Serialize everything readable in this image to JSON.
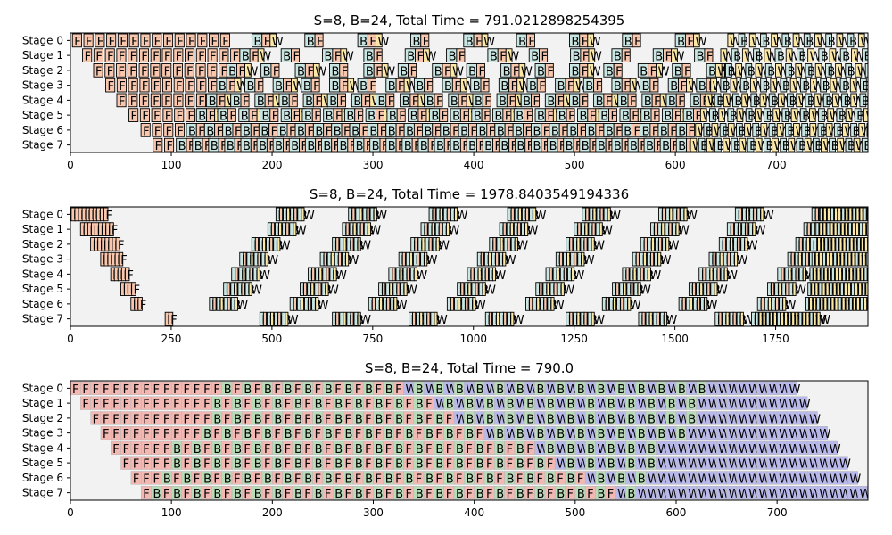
{
  "chart_data": [
    {
      "type": "gantt",
      "title": "S=8, B=24, Total Time = 791.0212898254395",
      "stages": [
        "Stage 0",
        "Stage 1",
        "Stage 2",
        "Stage 3",
        "Stage 4",
        "Stage 5",
        "Stage 6",
        "Stage 7"
      ],
      "xlim": [
        0,
        791
      ],
      "xticks": [
        "0",
        "100",
        "200",
        "300",
        "400",
        "500",
        "600",
        "700"
      ],
      "style": "outlined",
      "labels": {
        "F": "F",
        "B": "B",
        "W": "W"
      },
      "colors": {
        "F": "#f9c7ad",
        "B": "#c9e6e3",
        "W": "#fbe7a6"
      },
      "rows": [
        {
          "f_start": 2,
          "f_step": 11.3,
          "f_count": 14,
          "mid_start": 180,
          "mid_end": 645,
          "pair_step": 52.5,
          "tail_start": 652,
          "tail_end": 791,
          "tail_step": 12,
          "w_density": 0.9
        },
        {
          "f_start": 12,
          "f_step": 11.3,
          "f_count": 14,
          "mid_start": 168,
          "mid_end": 640,
          "pair_step": 41,
          "tail_start": 645,
          "tail_end": 791,
          "tail_step": 12,
          "w_density": 0.9
        },
        {
          "f_start": 23,
          "f_step": 11.3,
          "f_count": 13,
          "mid_start": 155,
          "mid_end": 635,
          "pair_step": 34,
          "tail_start": 640,
          "tail_end": 791,
          "tail_step": 11,
          "w_density": 0.9
        },
        {
          "f_start": 35,
          "f_step": 11.3,
          "f_count": 11,
          "mid_start": 145,
          "mid_end": 630,
          "pair_step": 28,
          "tail_start": 635,
          "tail_end": 791,
          "tail_step": 11,
          "w_density": 0.9
        },
        {
          "f_start": 46,
          "f_step": 11.3,
          "f_count": 9,
          "mid_start": 135,
          "mid_end": 625,
          "pair_step": 24,
          "tail_start": 630,
          "tail_end": 791,
          "tail_step": 10,
          "w_density": 0.9
        },
        {
          "f_start": 58,
          "f_step": 11.3,
          "f_count": 7,
          "mid_start": 125,
          "mid_end": 620,
          "pair_step": 21,
          "tail_start": 625,
          "tail_end": 791,
          "tail_step": 10,
          "w_density": 0.9
        },
        {
          "f_start": 70,
          "f_step": 11.3,
          "f_count": 4,
          "mid_start": 115,
          "mid_end": 615,
          "pair_step": 18,
          "tail_start": 620,
          "tail_end": 791,
          "tail_step": 9,
          "w_density": 0.9
        },
        {
          "f_start": 82,
          "f_step": 11.3,
          "f_count": 2,
          "mid_start": 105,
          "mid_end": 610,
          "pair_step": 16,
          "tail_start": 615,
          "tail_end": 791,
          "tail_step": 9,
          "w_density": 0.9
        }
      ]
    },
    {
      "type": "gantt",
      "title": "S=8, B=24, Total Time = 1978.8403549194336",
      "stages": [
        "Stage 0",
        "Stage 1",
        "Stage 2",
        "Stage 3",
        "Stage 4",
        "Stage 5",
        "Stage 6",
        "Stage 7"
      ],
      "xlim": [
        0,
        1979
      ],
      "xticks": [
        "0",
        "250",
        "500",
        "750",
        "1000",
        "1250",
        "1500",
        "1750"
      ],
      "style": "outlined",
      "labels": {
        "F": "F",
        "B": "B",
        "W": "W"
      },
      "colors": {
        "F": "#f9c7ad",
        "B": "#c9e6e3",
        "W": "#fbe7a6"
      },
      "rows": [
        {
          "f_start": 2,
          "f_step": 9,
          "f_count": 10,
          "groups": [
            510,
            690,
            890,
            1085,
            1270,
            1460,
            1650,
            1840
          ],
          "group_size": 4,
          "group_step": 18,
          "tail_start": 1860,
          "tail_end": 1979,
          "tail_step": 9
        },
        {
          "f_start": 25,
          "f_step": 9,
          "f_count": 9,
          "groups": [
            490,
            675,
            870,
            1065,
            1250,
            1440,
            1630,
            1820
          ],
          "group_size": 4,
          "group_step": 18,
          "tail_start": 1850,
          "tail_end": 1979,
          "tail_step": 9
        },
        {
          "f_start": 50,
          "f_step": 9,
          "f_count": 8,
          "groups": [
            450,
            650,
            845,
            1040,
            1230,
            1415,
            1610,
            1800
          ],
          "group_size": 4,
          "group_step": 18,
          "tail_start": 1845,
          "tail_end": 1979,
          "tail_step": 9
        },
        {
          "f_start": 75,
          "f_step": 9,
          "f_count": 6,
          "groups": [
            420,
            620,
            815,
            1010,
            1205,
            1395,
            1585,
            1780
          ],
          "group_size": 4,
          "group_step": 18,
          "tail_start": 1840,
          "tail_end": 1979,
          "tail_step": 9
        },
        {
          "f_start": 100,
          "f_step": 9,
          "f_count": 5,
          "groups": [
            400,
            590,
            790,
            985,
            1180,
            1370,
            1560,
            1755
          ],
          "group_size": 4,
          "group_step": 18,
          "tail_start": 1835,
          "tail_end": 1979,
          "tail_step": 9
        },
        {
          "f_start": 125,
          "f_step": 9,
          "f_count": 4,
          "groups": [
            380,
            570,
            765,
            960,
            1155,
            1345,
            1535,
            1730
          ],
          "group_size": 4,
          "group_step": 18,
          "tail_start": 1830,
          "tail_end": 1979,
          "tail_step": 9
        },
        {
          "f_start": 150,
          "f_step": 9,
          "f_count": 3,
          "groups": [
            345,
            545,
            740,
            935,
            1130,
            1320,
            1510,
            1705
          ],
          "group_size": 4,
          "group_step": 18,
          "tail_start": 1825,
          "tail_end": 1979,
          "tail_step": 9
        },
        {
          "f_start": 235,
          "f_step": 9,
          "f_count": 2,
          "groups": [
            470,
            650,
            840,
            1030,
            1230,
            1410,
            1600,
            1690
          ],
          "group_size": 4,
          "group_step": 18,
          "tail_start": 1700,
          "tail_end": 1860,
          "tail_step": 9
        }
      ]
    },
    {
      "type": "gantt",
      "title": "S=8, B=24, Total Time = 790.0",
      "stages": [
        "Stage 0",
        "Stage 1",
        "Stage 2",
        "Stage 3",
        "Stage 4",
        "Stage 5",
        "Stage 6",
        "Stage 7"
      ],
      "xlim": [
        0,
        790
      ],
      "xticks": [
        "0",
        "100",
        "200",
        "300",
        "400",
        "500",
        "600",
        "700"
      ],
      "style": "filled",
      "labels": {
        "F": "F",
        "B": "B",
        "W": "W"
      },
      "colors": {
        "F": "#f4b8b3",
        "B": "#b8dcb8",
        "W": "#b9b9ec"
      },
      "rows": [
        {
          "lead": 0,
          "f_count": 15,
          "fb_count": 9,
          "wb_count": 15,
          "w_count": 9,
          "unit": 10
        },
        {
          "lead": 10,
          "f_count": 13,
          "fb_count": 11,
          "wb_count": 13,
          "w_count": 11,
          "unit": 10
        },
        {
          "lead": 20,
          "f_count": 12,
          "fb_count": 12,
          "wb_count": 12,
          "w_count": 12,
          "unit": 10
        },
        {
          "lead": 30,
          "f_count": 10,
          "fb_count": 14,
          "wb_count": 10,
          "w_count": 14,
          "unit": 10
        },
        {
          "lead": 40,
          "f_count": 6,
          "fb_count": 18,
          "wb_count": 6,
          "w_count": 18,
          "unit": 10
        },
        {
          "lead": 50,
          "f_count": 5,
          "fb_count": 19,
          "wb_count": 5,
          "w_count": 19,
          "unit": 10
        },
        {
          "lead": 60,
          "f_count": 3,
          "fb_count": 21,
          "wb_count": 3,
          "w_count": 21,
          "unit": 10
        },
        {
          "lead": 70,
          "f_count": 1,
          "fb_count": 23,
          "wb_count": 1,
          "w_count": 23,
          "unit": 10
        }
      ]
    }
  ]
}
